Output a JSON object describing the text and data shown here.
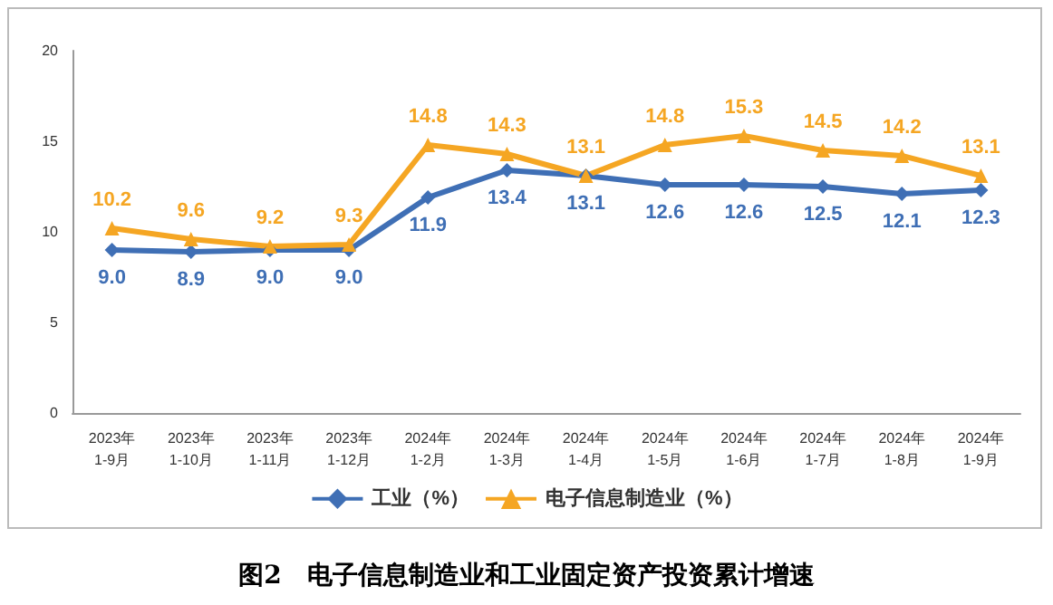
{
  "chart_data": {
    "type": "line",
    "title": "图2　电子信息制造业和工业固定资产投资累计增速",
    "categories": [
      "2023年\n1-9月",
      "2023年\n1-10月",
      "2023年\n1-11月",
      "2023年\n1-12月",
      "2024年\n1-2月",
      "2024年\n1-3月",
      "2024年\n1-4月",
      "2024年\n1-5月",
      "2024年\n1-6月",
      "2024年\n1-7月",
      "2024年\n1-8月",
      "2024年\n1-9月"
    ],
    "series": [
      {
        "name": "工业（%）",
        "color": "#3f6fb5",
        "marker": "diamond",
        "values": [
          9.0,
          8.9,
          9.0,
          9.0,
          11.9,
          13.4,
          13.1,
          12.6,
          12.6,
          12.5,
          12.1,
          12.3
        ],
        "value_labels": [
          "9.0",
          "8.9",
          "9.0",
          "9.0",
          "11.9",
          "13.4",
          "13.1",
          "12.6",
          "12.6",
          "12.5",
          "12.1",
          "12.3"
        ]
      },
      {
        "name": "电子信息制造业（%）",
        "color": "#f5a623",
        "marker": "triangle",
        "values": [
          10.2,
          9.6,
          9.2,
          9.3,
          14.8,
          14.3,
          13.1,
          14.8,
          15.3,
          14.5,
          14.2,
          13.1
        ],
        "value_labels": [
          "10.2",
          "9.6",
          "9.2",
          "9.3",
          "14.8",
          "14.3",
          "13.1",
          "14.8",
          "15.3",
          "14.5",
          "14.2",
          "13.1"
        ]
      }
    ],
    "ylim": [
      0,
      20
    ],
    "yticks": [
      0,
      5,
      10,
      15,
      20
    ],
    "grid": false,
    "legend": "bottom"
  }
}
